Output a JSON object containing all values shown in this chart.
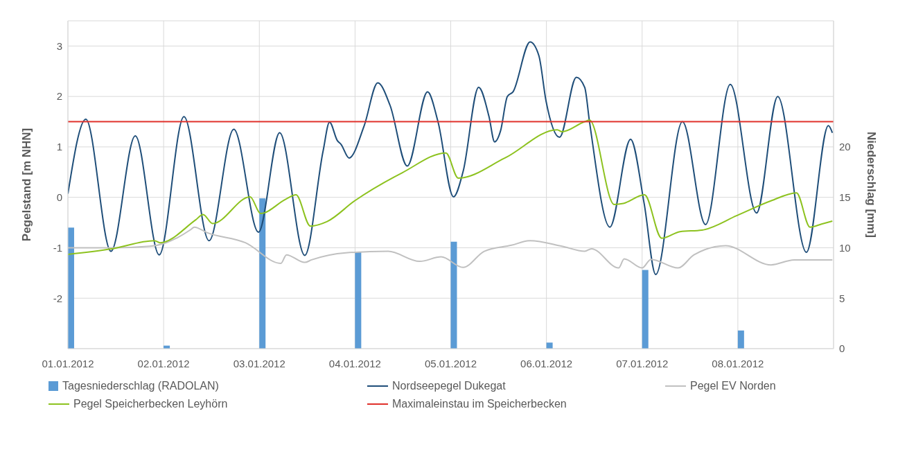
{
  "chart_data": {
    "type": "line",
    "ylabel": "Pegelstand [m NHN]",
    "y2label": "Niederschlag [mm]",
    "xlim": [
      "2012-01-01",
      "2012-01-09"
    ],
    "xticks": [
      {
        "value": "2012-01-01",
        "label": "01.01.2012"
      },
      {
        "value": "2012-01-02",
        "label": "02.01.2012"
      },
      {
        "value": "2012-01-03",
        "label": "03.01.2012"
      },
      {
        "value": "2012-01-04",
        "label": "04.01.2012"
      },
      {
        "value": "2012-01-05",
        "label": "05.01.2012"
      },
      {
        "value": "2012-01-06",
        "label": "06.01.2012"
      },
      {
        "value": "2012-01-07",
        "label": "07.01.2012"
      },
      {
        "value": "2012-01-08",
        "label": "08.01.2012"
      }
    ],
    "ylim": [
      -3,
      3.5
    ],
    "yticks": [
      -2,
      -1,
      0,
      1,
      2,
      3
    ],
    "y2lim": [
      0,
      32.5
    ],
    "y2ticks": [
      0,
      5,
      10,
      15,
      20
    ],
    "grid": true,
    "legend": "bottom",
    "series": [
      {
        "name": "Tagesniederschlag (RADOLAN)",
        "type": "bar",
        "axis": "y2",
        "color": "#5b9bd5",
        "x": [
          "2012-01-01",
          "2012-01-02",
          "2012-01-03",
          "2012-01-04",
          "2012-01-05",
          "2012-01-06",
          "2012-01-07",
          "2012-01-08"
        ],
        "values": [
          12.0,
          0.3,
          14.9,
          9.6,
          10.6,
          0.6,
          7.8,
          1.8
        ]
      },
      {
        "name": "Nordseepegel Dukegat",
        "color": "#1f4e79",
        "x": [
          "2012-01-01T00:00",
          "2012-01-01T04:30",
          "2012-01-01T10:48",
          "2012-01-01T16:54",
          "2012-01-01T22:54",
          "2012-01-02T05:06",
          "2012-01-02T11:24",
          "2012-01-02T17:36",
          "2012-01-02T23:48",
          "2012-01-03T05:06",
          "2012-01-03T11:24",
          "2012-01-03T16:00",
          "2012-01-03T17:36",
          "2012-01-03T19:36",
          "2012-01-03T20:30",
          "2012-01-03T22:30",
          "2012-01-04T02:18",
          "2012-01-04T05:42",
          "2012-01-04T08:48",
          "2012-01-04T13:06",
          "2012-01-04T18:12",
          "2012-01-04T20:48",
          "2012-01-05T00:42",
          "2012-01-05T03:06",
          "2012-01-05T07:00",
          "2012-01-05T09:36",
          "2012-01-05T11:00",
          "2012-01-05T12:30",
          "2012-01-05T14:12",
          "2012-01-05T15:36",
          "2012-01-05T19:54",
          "2012-01-05T22:06",
          "2012-01-05T23:54",
          "2012-01-06T03:18",
          "2012-01-06T07:30",
          "2012-01-06T09:36",
          "2012-01-06T10:48",
          "2012-01-06T15:54",
          "2012-01-06T21:06",
          "2012-01-07T00:30",
          "2012-01-07T03:24",
          "2012-01-07T10:06",
          "2012-01-07T15:54",
          "2012-01-07T22:06",
          "2012-01-08T04:42",
          "2012-01-08T10:00",
          "2012-01-08T17:12",
          "2012-01-08T22:42",
          "2012-01-08T23:42"
        ],
        "values": [
          0.07,
          1.55,
          -1.07,
          1.22,
          -1.14,
          1.6,
          -0.86,
          1.35,
          -0.69,
          1.28,
          -1.15,
          0.92,
          1.49,
          1.12,
          1.05,
          0.78,
          1.42,
          2.27,
          1.82,
          0.62,
          2.09,
          1.5,
          0.01,
          0.51,
          2.18,
          1.6,
          1.1,
          1.32,
          2.0,
          2.09,
          3.08,
          2.81,
          1.91,
          1.19,
          2.38,
          2.18,
          1.5,
          -0.59,
          1.15,
          -0.12,
          -1.53,
          1.5,
          -0.54,
          2.24,
          -0.31,
          2.0,
          -1.09,
          1.42,
          1.28
        ]
      },
      {
        "name": "Pegel EV Norden",
        "color": "#c0c0c0",
        "x": [
          "2012-01-01T00:00",
          "2012-01-01T11:00",
          "2012-01-01T20:30",
          "2012-01-02T00:36",
          "2012-01-02T06:48",
          "2012-01-02T07:42",
          "2012-01-02T10:54",
          "2012-01-02T20:30",
          "2012-01-03T05:24",
          "2012-01-03T06:48",
          "2012-01-03T11:24",
          "2012-01-03T13:06",
          "2012-01-03T21:42",
          "2012-01-04T08:18",
          "2012-01-04T16:12",
          "2012-01-04T21:36",
          "2012-01-05T03:06",
          "2012-01-05T08:24",
          "2012-01-05T15:12",
          "2012-01-05T19:54",
          "2012-01-06T03:54",
          "2012-01-06T09:36",
          "2012-01-06T11:18",
          "2012-01-06T18:06",
          "2012-01-06T19:30",
          "2012-01-07T00:00",
          "2012-01-07T02:12",
          "2012-01-07T09:00",
          "2012-01-07T13:00",
          "2012-01-07T20:54",
          "2012-01-08T08:18",
          "2012-01-08T14:06",
          "2012-01-08T23:42"
        ],
        "values": [
          -1.0,
          -1.0,
          -0.97,
          -0.9,
          -0.64,
          -0.59,
          -0.7,
          -0.9,
          -1.31,
          -1.14,
          -1.29,
          -1.24,
          -1.1,
          -1.07,
          -1.27,
          -1.18,
          -1.39,
          -1.07,
          -0.95,
          -0.86,
          -0.97,
          -1.07,
          -1.02,
          -1.4,
          -1.22,
          -1.4,
          -1.23,
          -1.4,
          -1.14,
          -0.96,
          -1.34,
          -1.24,
          -1.24
        ]
      },
      {
        "name": "Pegel Speicherbecken Leyhörn",
        "color": "#8dc21f",
        "x": [
          "2012-01-01T00:00",
          "2012-01-01T11:00",
          "2012-01-01T21:42",
          "2012-01-01T23:06",
          "2012-01-02T08:00",
          "2012-01-02T09:54",
          "2012-01-02T12:18",
          "2012-01-02T21:42",
          "2012-01-03T00:18",
          "2012-01-03T06:48",
          "2012-01-03T09:12",
          "2012-01-03T12:48",
          "2012-01-03T17:00",
          "2012-01-03T23:54",
          "2012-01-04T11:54",
          "2012-01-04T22:48",
          "2012-01-05T01:54",
          "2012-01-05T13:36",
          "2012-01-06T02:42",
          "2012-01-06T03:54",
          "2012-01-06T09:36",
          "2012-01-06T10:48",
          "2012-01-06T17:00",
          "2012-01-06T19:18",
          "2012-01-07T00:36",
          "2012-01-07T04:54",
          "2012-01-07T09:30",
          "2012-01-07T15:00",
          "2012-01-07T23:48",
          "2012-01-08T08:18",
          "2012-01-08T14:42",
          "2012-01-08T18:06",
          "2012-01-08T21:00",
          "2012-01-08T23:42"
        ],
        "values": [
          -1.13,
          -1.02,
          -0.86,
          -0.9,
          -0.45,
          -0.34,
          -0.52,
          0.01,
          -0.32,
          -0.03,
          0.05,
          -0.57,
          -0.48,
          -0.07,
          0.49,
          0.88,
          0.38,
          0.78,
          1.34,
          1.3,
          1.5,
          1.53,
          -0.14,
          -0.12,
          0.05,
          -0.81,
          -0.68,
          -0.65,
          -0.36,
          -0.07,
          0.09,
          -0.59,
          -0.53,
          -0.47
        ]
      }
    ],
    "ref_lines": [
      {
        "axis": "y",
        "value": 1.5,
        "label": "Maximaleinstau im Speicherbecken",
        "color": "#e0302a"
      }
    ]
  }
}
